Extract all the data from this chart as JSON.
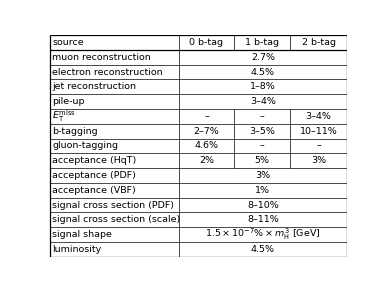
{
  "header": [
    "source",
    "0 b-tag",
    "1 b-tag",
    "2 b-tag"
  ],
  "rows": [
    [
      "muon reconstruction",
      "2.7%",
      null,
      null
    ],
    [
      "electron reconstruction",
      "4.5%",
      null,
      null
    ],
    [
      "jet reconstruction",
      "1–8%",
      null,
      null
    ],
    [
      "pile-up",
      "3–4%",
      null,
      null
    ],
    [
      "$E_{\\rm T}^{\\rm miss}$",
      "–",
      "–",
      "3–4%"
    ],
    [
      "b-tagging",
      "2–7%",
      "3–5%",
      "10–11%"
    ],
    [
      "gluon-tagging",
      "4.6%",
      "–",
      "–"
    ],
    [
      "acceptance (HqT)",
      "2%",
      "5%",
      "3%"
    ],
    [
      "acceptance (PDF)",
      "3%",
      null,
      null
    ],
    [
      "acceptance (VBF)",
      "1%",
      null,
      null
    ],
    [
      "signal cross section (PDF)",
      "8–10%",
      null,
      null
    ],
    [
      "signal cross section (scale)",
      "8–11%",
      null,
      null
    ],
    [
      "signal shape",
      "$1.5 \\times 10^{-7}\\%\\times m_{\\rm H}^{3}$ [GeV]",
      null,
      null
    ],
    [
      "luminosity",
      "4.5%",
      null,
      null
    ]
  ],
  "col_splits": [
    0.435,
    0.62,
    0.81
  ],
  "bg_color": "#ffffff",
  "font_size": 6.8,
  "header_font_size": 6.8,
  "figsize": [
    3.86,
    2.89
  ],
  "dpi": 100
}
